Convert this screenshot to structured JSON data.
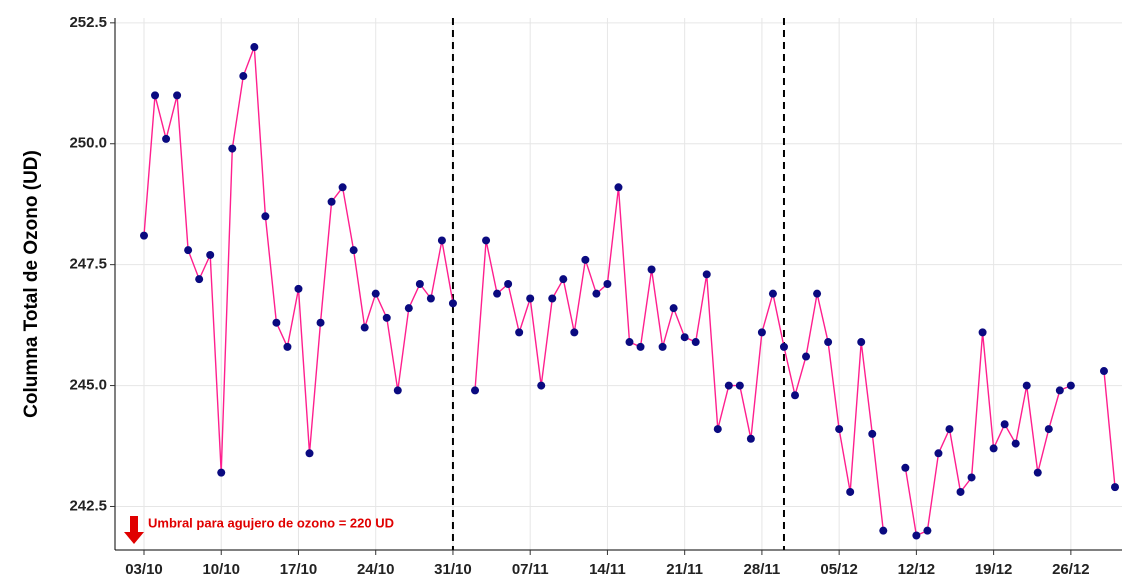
{
  "chart_data": {
    "type": "line",
    "y_label": "Columna Total de Ozono (UD)",
    "annotation": "Umbral para agujero de ozono = 220 UD",
    "categories": [
      "03/10",
      null,
      null,
      null,
      null,
      null,
      null,
      "10/10",
      null,
      null,
      null,
      null,
      null,
      null,
      "17/10",
      null,
      null,
      null,
      null,
      null,
      null,
      "24/10",
      null,
      null,
      null,
      null,
      null,
      null,
      "31/10",
      null,
      null,
      null,
      null,
      null,
      null,
      "07/11",
      null,
      null,
      null,
      null,
      null,
      null,
      "14/11",
      null,
      null,
      null,
      null,
      null,
      null,
      "21/11",
      null,
      null,
      null,
      null,
      null,
      null,
      "28/11",
      null,
      null,
      null,
      null,
      null,
      null,
      "05/12",
      null,
      null,
      null,
      null,
      null,
      null,
      "12/12",
      null,
      null,
      null,
      null,
      null,
      null,
      "19/12",
      null,
      null,
      null,
      null,
      null,
      null,
      "26/12",
      null,
      null,
      null,
      null
    ],
    "series": [
      {
        "line_color": "#ff1f8e",
        "color": "#0a0a80",
        "values": [
          248.1,
          251.0,
          250.1,
          251.0,
          247.8,
          247.2,
          247.7,
          243.2,
          249.9,
          251.4,
          252.0,
          248.5,
          246.3,
          245.8,
          247.0,
          243.6,
          246.3,
          248.8,
          249.1,
          247.8,
          246.2,
          246.9,
          246.4,
          244.9,
          246.6,
          247.1,
          246.8,
          248.0,
          246.7,
          null,
          244.9,
          248.0,
          246.9,
          247.1,
          246.1,
          246.8,
          245.0,
          246.8,
          247.2,
          246.1,
          247.6,
          246.9,
          247.1,
          249.1,
          245.9,
          245.8,
          247.4,
          245.8,
          246.6,
          246.0,
          245.9,
          247.3,
          244.1,
          245.0,
          245.0,
          243.9,
          246.1,
          246.9,
          245.8,
          244.8,
          245.6,
          246.9,
          245.9,
          244.1,
          242.8,
          245.9,
          244.0,
          242.0,
          null,
          243.3,
          241.9,
          242.0,
          243.6,
          244.1,
          242.8,
          243.1,
          246.1,
          243.7,
          244.2,
          243.8,
          245.0,
          243.2,
          244.1,
          244.9,
          245.0,
          null,
          null,
          245.3,
          242.9
        ]
      }
    ],
    "vlines": [
      28,
      58
    ],
    "ylim": [
      241.6,
      252.6
    ],
    "yticks": [
      242.5,
      {
        "value": 245,
        "label": "245.0"
      },
      247.5,
      {
        "value": 250,
        "label": "250.0"
      },
      252.5
    ],
    "grid": true
  }
}
